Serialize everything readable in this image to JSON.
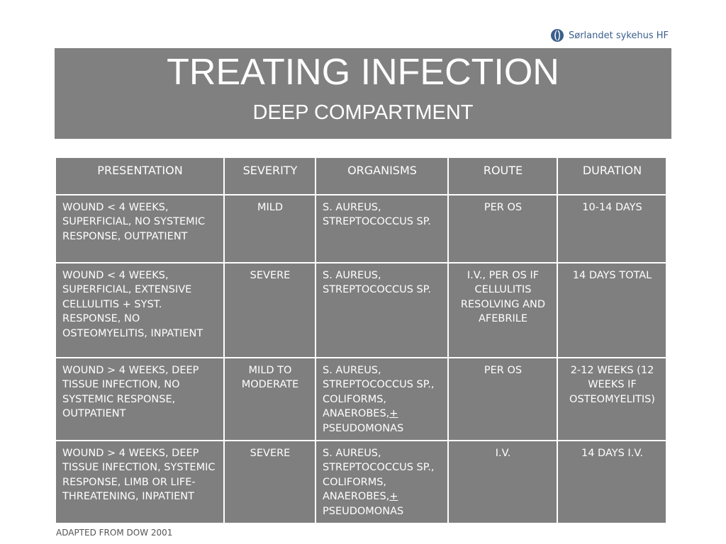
{
  "logo": {
    "text": "Sørlandet sykehus HF",
    "icon": "hospital-logo-icon"
  },
  "title": {
    "main": "TREATING INFECTION",
    "sub": "DEEP COMPARTMENT"
  },
  "table": {
    "headers": [
      "PRESENTATION",
      "SEVERITY",
      "ORGANISMS",
      "ROUTE",
      "DURATION"
    ],
    "rows": [
      {
        "presentation": "WOUND < 4 WEEKS, SUPERFICIAL, NO SYSTEMIC RESPONSE, OUTPATIENT",
        "severity": "MILD",
        "organisms": "S. AUREUS, STREPTOCOCCUS SP.",
        "route": "PER OS",
        "duration": "10-14 DAYS"
      },
      {
        "presentation": "WOUND < 4 WEEKS, SUPERFICIAL, EXTENSIVE CELLULITIS + SYST. RESPONSE, NO OSTEOMYELITIS, INPATIENT",
        "severity": "SEVERE",
        "organisms": "S. AUREUS, STREPTOCOCCUS SP.",
        "route": "I.V., PER OS IF CELLULITIS RESOLVING AND AFEBRILE",
        "duration": "14 DAYS TOTAL"
      },
      {
        "presentation": "WOUND > 4 WEEKS, DEEP TISSUE INFECTION, NO SYSTEMIC RESPONSE, OUTPATIENT",
        "severity": "MILD TO MODERATE",
        "organisms_main": "S. AUREUS, STREPTOCOCCUS SP., COLIFORMS, ANAEROBES,",
        "organisms_plus": "+",
        "organisms_tail": "PSEUDOMONAS",
        "route": "PER OS",
        "duration": "2-12 WEEKS (12 WEEKS IF OSTEOMYELITIS)"
      },
      {
        "presentation": "WOUND > 4 WEEKS, DEEP TISSUE INFECTION, SYSTEMIC RESPONSE, LIMB OR LIFE-THREATENING, INPATIENT",
        "severity": "SEVERE",
        "organisms_main": "S. AUREUS, STREPTOCOCCUS SP., COLIFORMS, ANAEROBES,",
        "organisms_plus": "+",
        "organisms_tail": "PSEUDOMONAS",
        "route": "I.V.",
        "duration": "14 DAYS I.V."
      }
    ]
  },
  "footer": {
    "text": "ADAPTED FROM DOW 2001"
  },
  "colors": {
    "banner": "#808080",
    "cell": "#7f7f7f",
    "logo_blue": "#3b5f8c"
  }
}
